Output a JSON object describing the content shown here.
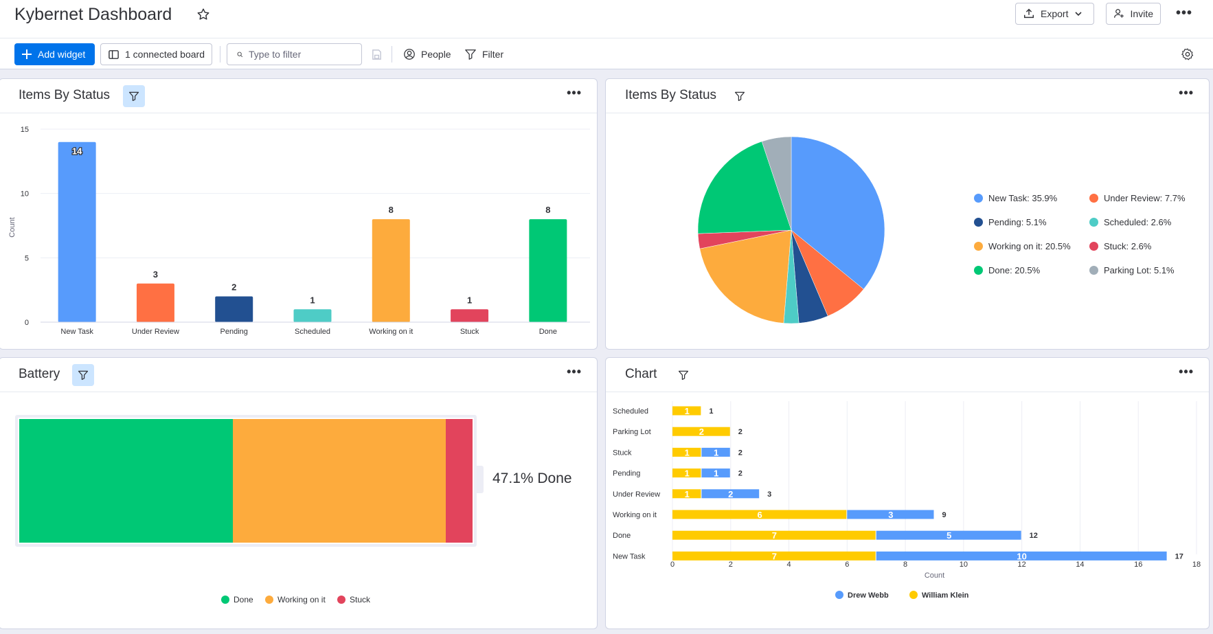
{
  "header": {
    "title": "Kybernet Dashboard",
    "export_label": "Export",
    "invite_label": "Invite"
  },
  "toolbar": {
    "add_widget_label": "Add widget",
    "connected_board_label": "1 connected board",
    "filter_placeholder": "Type to filter",
    "people_label": "People",
    "filter_label": "Filter"
  },
  "colors": {
    "primary": "#0073ea",
    "new_task": "#579bfc",
    "under_review": "#ff7043",
    "pending": "#225091",
    "scheduled": "#4eccc6",
    "working_on_it": "#fdab3d",
    "stuck": "#e2445c",
    "done": "#00c875",
    "parking_lot": "#a1aeb8",
    "william_klein": "#ffcb00",
    "drew_webb": "#579bfc"
  },
  "widgets": {
    "status_bar": {
      "title": "Items By Status"
    },
    "status_pie": {
      "title": "Items By Status"
    },
    "battery": {
      "title": "Battery",
      "done_label": "47.1% Done"
    },
    "chart": {
      "title": "Chart"
    }
  },
  "chart_data": [
    {
      "type": "bar",
      "title": "Items By Status",
      "ylabel": "Count",
      "ylim": [
        0,
        15
      ],
      "yticks": [
        "0",
        "5",
        "10",
        "15"
      ],
      "categories": [
        "New Task",
        "Under Review",
        "Pending",
        "Scheduled",
        "Working on it",
        "Stuck",
        "Done"
      ],
      "values": [
        14,
        3,
        2,
        1,
        8,
        1,
        8
      ],
      "value_labels": [
        "14",
        "3",
        "2",
        "1",
        "8",
        "1",
        "8"
      ],
      "colors": [
        "#579bfc",
        "#ff7043",
        "#225091",
        "#4eccc6",
        "#fdab3d",
        "#e2445c",
        "#00c875"
      ]
    },
    {
      "type": "pie",
      "title": "Items By Status",
      "legend_position": "right",
      "slices": [
        {
          "label": "New Task",
          "value": 35.9,
          "legend": "New Task: 35.9%",
          "color": "#579bfc"
        },
        {
          "label": "Under Review",
          "value": 7.7,
          "legend": "Under Review: 7.7%",
          "color": "#ff7043"
        },
        {
          "label": "Pending",
          "value": 5.1,
          "legend": "Pending: 5.1%",
          "color": "#225091"
        },
        {
          "label": "Scheduled",
          "value": 2.6,
          "legend": "Scheduled: 2.6%",
          "color": "#4eccc6"
        },
        {
          "label": "Working on it",
          "value": 20.5,
          "legend": "Working on it: 20.5%",
          "color": "#fdab3d"
        },
        {
          "label": "Stuck",
          "value": 2.6,
          "legend": "Stuck: 2.6%",
          "color": "#e2445c"
        },
        {
          "label": "Done",
          "value": 20.5,
          "legend": "Done: 20.5%",
          "color": "#00c875"
        },
        {
          "label": "Parking Lot",
          "value": 5.1,
          "legend": "Parking Lot: 5.1%",
          "color": "#a1aeb8"
        }
      ]
    },
    {
      "type": "bar",
      "title": "Battery",
      "orientation": "stacked-horizontal",
      "summary": "47.1% Done",
      "segments": [
        {
          "label": "Done",
          "value": 8,
          "color": "#00c875"
        },
        {
          "label": "Working on it",
          "value": 8,
          "color": "#fdab3d"
        },
        {
          "label": "Stuck",
          "value": 1,
          "color": "#e2445c"
        }
      ]
    },
    {
      "type": "bar",
      "title": "Chart",
      "orientation": "stacked-horizontal",
      "xlabel": "Count",
      "xlim": [
        0,
        18
      ],
      "xticks": [
        "0",
        "2",
        "4",
        "6",
        "8",
        "10",
        "12",
        "14",
        "16",
        "18"
      ],
      "categories": [
        "Scheduled",
        "Parking Lot",
        "Stuck",
        "Pending",
        "Under Review",
        "Working on it",
        "Done",
        "New Task"
      ],
      "series": [
        {
          "name": "William Klein",
          "color": "#ffcb00",
          "values": [
            1,
            2,
            1,
            1,
            1,
            6,
            7,
            7
          ]
        },
        {
          "name": "Drew Webb",
          "color": "#579bfc",
          "values": [
            0,
            0,
            1,
            1,
            2,
            3,
            5,
            10
          ]
        }
      ],
      "totals": [
        1,
        2,
        2,
        2,
        3,
        9,
        12,
        17
      ],
      "legend": [
        "Drew Webb",
        "William Klein"
      ]
    }
  ]
}
